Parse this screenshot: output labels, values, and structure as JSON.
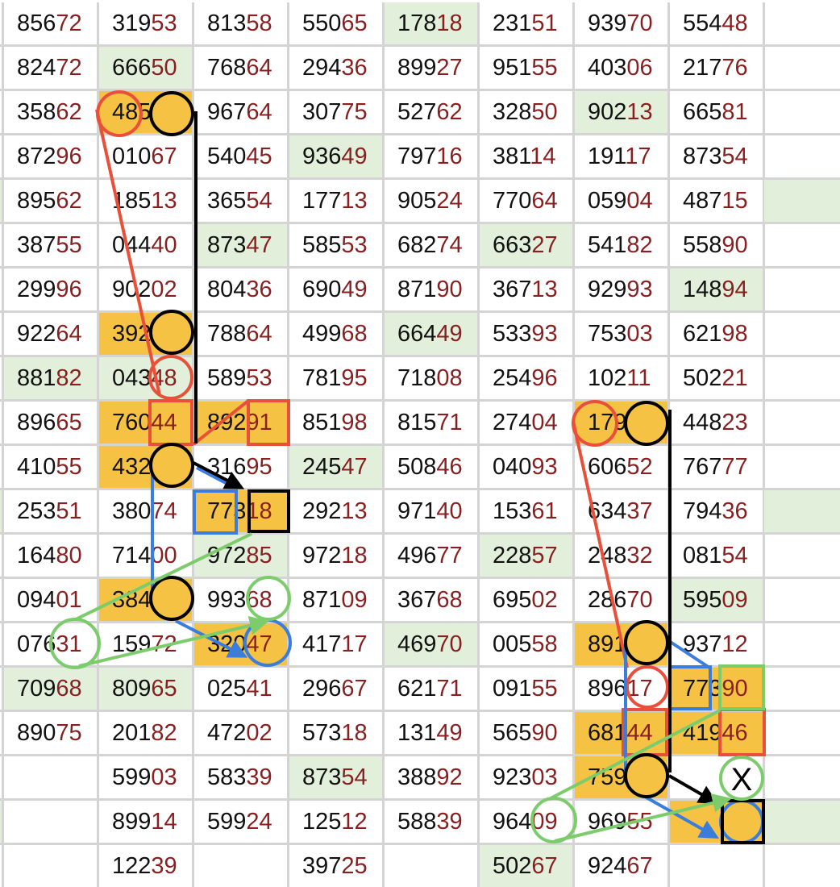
{
  "grid": {
    "rows": [
      [
        "85672",
        "31953",
        "81358",
        "55065",
        "17818",
        "23151",
        "93970",
        "55448"
      ],
      [
        "82472",
        "66650",
        "76864",
        "29436",
        "89927",
        "95155",
        "40306",
        "21776"
      ],
      [
        "35862",
        "48563",
        "96764",
        "30775",
        "52762",
        "32850",
        "90213",
        "66581"
      ],
      [
        "87296",
        "01067",
        "54045",
        "93649",
        "79716",
        "38114",
        "19117",
        "87354"
      ],
      [
        "89562",
        "18513",
        "36554",
        "17713",
        "90524",
        "77064",
        "05904",
        "48715"
      ],
      [
        "38755",
        "04440",
        "87347",
        "58553",
        "68274",
        "66327",
        "54182",
        "55890"
      ],
      [
        "29996",
        "90202",
        "80436",
        "69049",
        "87190",
        "36713",
        "92993",
        "14894"
      ],
      [
        "92264",
        "39218",
        "78864",
        "49968",
        "66449",
        "53393",
        "75303",
        "62198"
      ],
      [
        "88182",
        "04348",
        "58953",
        "78195",
        "71808",
        "25496",
        "10211",
        "50221"
      ],
      [
        "89665",
        "76044",
        "89291",
        "85198",
        "81571",
        "27404",
        "17965",
        "44823"
      ],
      [
        "41055",
        "43218",
        "31695",
        "24547",
        "50846",
        "04093",
        "60652",
        "76777"
      ],
      [
        "25351",
        "38074",
        "77318",
        "29213",
        "97140",
        "15361",
        "63437",
        "79436"
      ],
      [
        "16480",
        "71400",
        "97285",
        "97218",
        "49677",
        "22857",
        "24832",
        "08154"
      ],
      [
        "09401",
        "38460",
        "99368",
        "87109",
        "36768",
        "69502",
        "28670",
        "59509"
      ],
      [
        "07631",
        "15972",
        "32047",
        "41717",
        "46970",
        "00558",
        "89151",
        "93712"
      ],
      [
        "70968",
        "80965",
        "02541",
        "29667",
        "62171",
        "09155",
        "89617",
        "77390"
      ],
      [
        "89075",
        "20182",
        "47202",
        "57318",
        "13149",
        "56590",
        "68144",
        "41946"
      ],
      [
        "",
        "59903",
        "58339",
        "87354",
        "38892",
        "92303",
        "75965",
        ""
      ],
      [
        "",
        "89914",
        "59924",
        "12512",
        "58839",
        "96409",
        "96955",
        ""
      ],
      [
        "",
        "12239",
        "",
        "39725",
        "",
        "50267",
        "92467",
        ""
      ]
    ],
    "fills": [
      [
        "",
        "",
        "",
        "",
        "",
        "g",
        "",
        "",
        "",
        ""
      ],
      [
        "",
        "",
        "g",
        "",
        "",
        "",
        "",
        "",
        "",
        ""
      ],
      [
        "",
        "",
        "o",
        "",
        "",
        "",
        "",
        "g",
        "",
        ""
      ],
      [
        "",
        "",
        "",
        "",
        "g",
        "",
        "",
        "",
        "",
        ""
      ],
      [
        "g",
        "",
        "",
        "",
        "",
        "",
        "",
        "",
        "",
        "g"
      ],
      [
        "",
        "",
        "",
        "g",
        "",
        "",
        "g",
        "",
        "",
        ""
      ],
      [
        "",
        "",
        "",
        "",
        "",
        "",
        "",
        "",
        "g",
        ""
      ],
      [
        "",
        "",
        "o",
        "",
        "",
        "g",
        "",
        "",
        "",
        ""
      ],
      [
        "",
        "g",
        "g",
        "",
        "",
        "",
        "",
        "",
        "",
        ""
      ],
      [
        "",
        "",
        "o",
        "o",
        "",
        "",
        "",
        "o",
        "",
        ""
      ],
      [
        "",
        "",
        "o",
        "",
        "g",
        "",
        "",
        "",
        "",
        ""
      ],
      [
        "g",
        "",
        "",
        "o",
        "",
        "",
        "",
        "",
        "",
        "g"
      ],
      [
        "",
        "",
        "",
        "g",
        "",
        "",
        "g",
        "",
        "",
        ""
      ],
      [
        "",
        "",
        "o",
        "",
        "",
        "",
        "",
        "",
        "g",
        ""
      ],
      [
        "",
        "",
        "",
        "o",
        "",
        "g",
        "",
        "o",
        "",
        ""
      ],
      [
        "",
        "g",
        "g",
        "",
        "",
        "",
        "",
        "",
        "o",
        ""
      ],
      [
        "",
        "",
        "",
        "",
        "",
        "",
        "",
        "o",
        "o",
        ""
      ],
      [
        "",
        "",
        "",
        "",
        "g",
        "",
        "",
        "o",
        "",
        ""
      ],
      [
        "g",
        "",
        "",
        "",
        "",
        "",
        "",
        "",
        "o",
        "g"
      ],
      [
        "",
        "",
        "",
        "",
        "",
        "",
        "g",
        "",
        "",
        ""
      ]
    ],
    "colors": {
      "green": "#e2efda",
      "orange": "#f5c243",
      "digits": "#111111",
      "last_two_digits": "#8b1f1f"
    }
  },
  "annotations": {
    "x_mark": "X",
    "colors": {
      "red": "#e8503a",
      "black": "#000000",
      "blue": "#3b7ddd",
      "green": "#7ccc6c"
    }
  }
}
